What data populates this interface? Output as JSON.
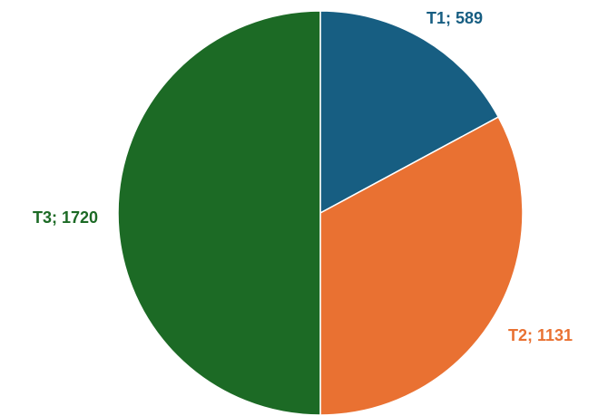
{
  "chart_data": {
    "type": "pie",
    "title": "",
    "slices": [
      {
        "label": "T1",
        "value": 589,
        "color": "#175E82",
        "display": "T1; 589"
      },
      {
        "label": "T2",
        "value": 1131,
        "color": "#E97132",
        "display": "T2; 1131"
      },
      {
        "label": "T3",
        "value": 1720,
        "color": "#1C6A25",
        "display": "T3; 1720"
      }
    ],
    "start_angle": "12 o'clock",
    "direction": "clockwise",
    "legend": "none",
    "data_labels": "outside, colored to match slice"
  }
}
